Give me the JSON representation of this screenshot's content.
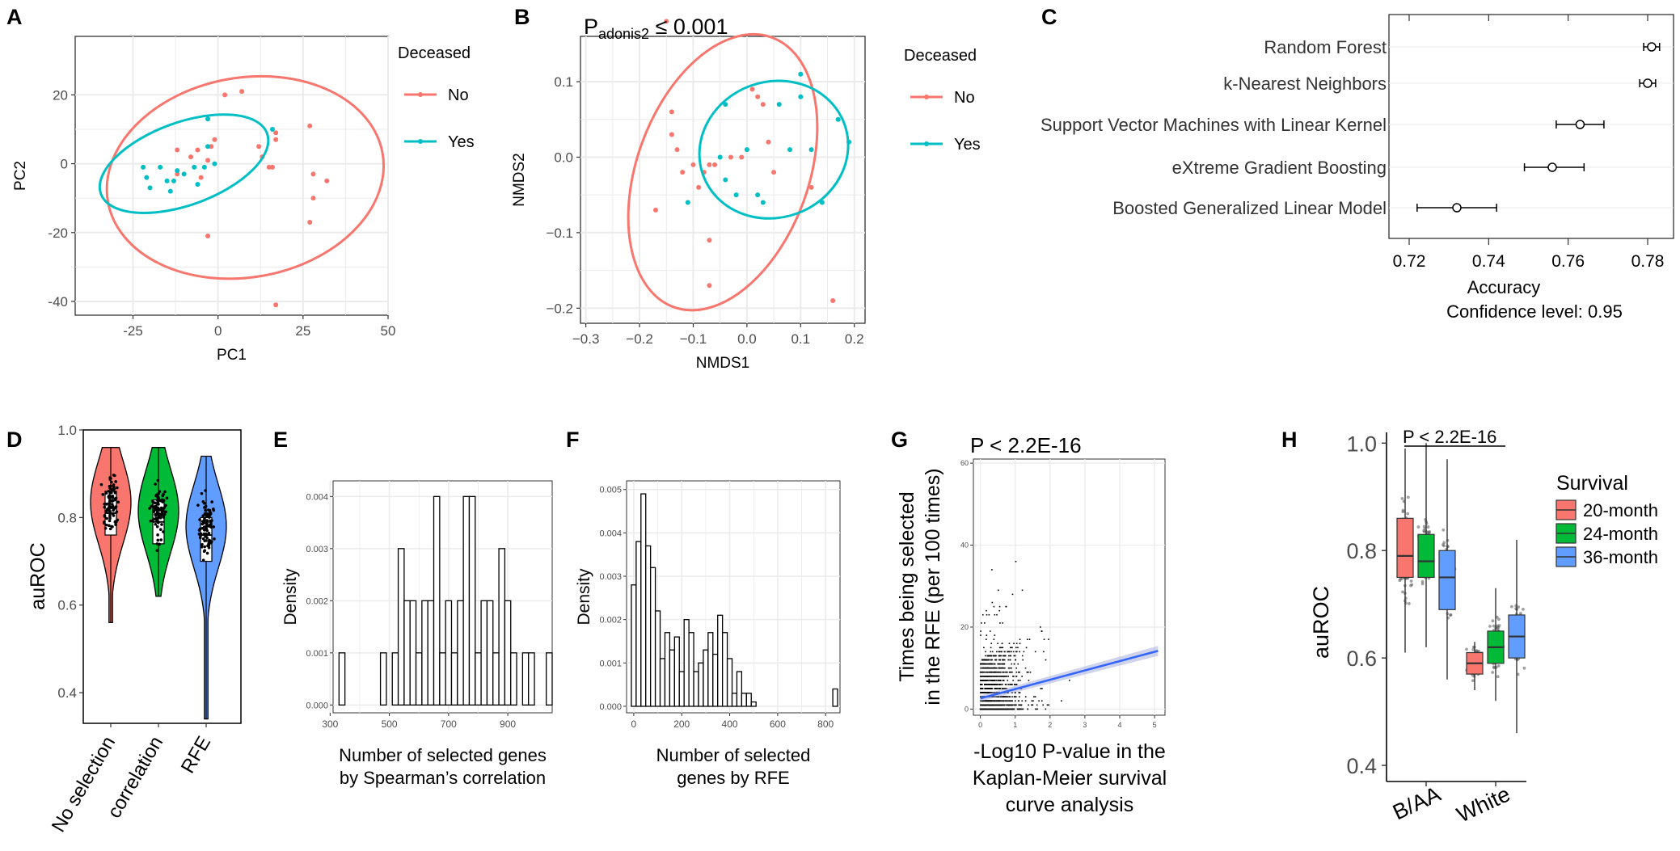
{
  "colors": {
    "no": "#F8766D",
    "yes": "#00BFC4",
    "red": "#F8766D",
    "green": "#00BA38",
    "blue": "#619CFF",
    "grid": "#EBEBEB",
    "bar": "#ffffff",
    "trend": "#3366FF"
  },
  "panel_labels": {
    "A": "A",
    "B": "B",
    "C": "C",
    "D": "D",
    "E": "E",
    "F": "F",
    "G": "G",
    "H": "H"
  },
  "chart_data": [
    {
      "id": "A",
      "type": "scatter",
      "xlabel": "PC1",
      "ylabel": "PC2",
      "xlim": [
        -42,
        50
      ],
      "ylim": [
        -44,
        37
      ],
      "xticks": [
        -25,
        0,
        25,
        50
      ],
      "yticks": [
        -40,
        -20,
        0,
        20
      ],
      "legend": {
        "title": "Deceased",
        "entries": [
          "No",
          "Yes"
        ]
      },
      "series": [
        {
          "name": "No",
          "points": [
            [
              -12,
              4
            ],
            [
              -8,
              2
            ],
            [
              -6,
              4
            ],
            [
              -2,
              5
            ],
            [
              -1,
              7
            ],
            [
              -3,
              1
            ],
            [
              2,
              20
            ],
            [
              7,
              21
            ],
            [
              -5,
              -4
            ],
            [
              -3,
              -21
            ],
            [
              12,
              5
            ],
            [
              13,
              2
            ],
            [
              15,
              -1
            ],
            [
              17,
              9
            ],
            [
              17,
              7
            ],
            [
              16,
              -1
            ],
            [
              27,
              11
            ],
            [
              28,
              -3
            ],
            [
              32,
              -5
            ],
            [
              28,
              -10
            ],
            [
              27,
              -17
            ],
            [
              17,
              -41
            ],
            [
              -12,
              -3
            ]
          ],
          "ellipse": {
            "cx": 8,
            "cy": -4,
            "rx": 41,
            "ry": 29,
            "angle": 10
          }
        },
        {
          "name": "Yes",
          "points": [
            [
              -22,
              -1
            ],
            [
              -21,
              -4
            ],
            [
              -20,
              -7
            ],
            [
              -15,
              -5
            ],
            [
              -13,
              -5
            ],
            [
              -12,
              -2
            ],
            [
              -10,
              -3
            ],
            [
              -7,
              -1
            ],
            [
              -4,
              -1
            ],
            [
              -3,
              13
            ],
            [
              -1,
              0
            ],
            [
              -3,
              5
            ],
            [
              -6,
              -6
            ],
            [
              -14,
              -8
            ],
            [
              16,
              10
            ],
            [
              -17,
              -1
            ]
          ],
          "ellipse": {
            "cx": -10,
            "cy": 0,
            "rx": 26,
            "ry": 12,
            "angle": 20
          }
        }
      ]
    },
    {
      "id": "B",
      "type": "scatter",
      "title": "P",
      "title_sub": "adonis2",
      "title_rest": " ≤ 0.001",
      "xlabel": "NMDS1",
      "ylabel": "NMDS2",
      "xlim": [
        -0.31,
        0.22
      ],
      "ylim": [
        -0.22,
        0.16
      ],
      "xticks": [
        -0.3,
        -0.2,
        -0.1,
        0.0,
        0.1,
        0.2
      ],
      "xticklabels": [
        "−0.3",
        "−0.2",
        "−0.1",
        "0.0",
        "0.1",
        "0.2"
      ],
      "yticks": [
        -0.2,
        -0.1,
        0.0,
        0.1
      ],
      "yticklabels": [
        "−0.2",
        "−0.1",
        "0.0",
        "0.1"
      ],
      "legend": {
        "title": "Deceased",
        "entries": [
          "No",
          "Yes"
        ]
      },
      "series": [
        {
          "name": "No",
          "points": [
            [
              -0.15,
              0.18
            ],
            [
              -0.14,
              0.06
            ],
            [
              -0.13,
              0.01
            ],
            [
              -0.14,
              0.03
            ],
            [
              -0.12,
              -0.02
            ],
            [
              -0.1,
              -0.01
            ],
            [
              -0.09,
              -0.04
            ],
            [
              -0.08,
              -0.02
            ],
            [
              -0.07,
              -0.01
            ],
            [
              -0.06,
              -0.01
            ],
            [
              -0.03,
              0.0
            ],
            [
              -0.01,
              0.0
            ],
            [
              0.01,
              0.09
            ],
            [
              0.02,
              0.08
            ],
            [
              0.03,
              0.07
            ],
            [
              0.04,
              0.02
            ],
            [
              0.05,
              -0.02
            ],
            [
              0.12,
              -0.04
            ],
            [
              -0.07,
              -0.11
            ],
            [
              -0.07,
              -0.17
            ],
            [
              -0.17,
              -0.07
            ],
            [
              0.16,
              -0.19
            ]
          ],
          "ellipse": {
            "cx": -0.045,
            "cy": -0.02,
            "rx": 0.16,
            "ry": 0.19,
            "angle": -20
          }
        },
        {
          "name": "Yes",
          "points": [
            [
              -0.04,
              0.07
            ],
            [
              -0.05,
              0.0
            ],
            [
              -0.04,
              -0.03
            ],
            [
              -0.02,
              -0.05
            ],
            [
              0.0,
              0.01
            ],
            [
              0.02,
              -0.05
            ],
            [
              0.03,
              -0.06
            ],
            [
              0.06,
              0.07
            ],
            [
              0.08,
              0.01
            ],
            [
              0.1,
              0.08
            ],
            [
              0.1,
              0.11
            ],
            [
              0.12,
              0.01
            ],
            [
              0.14,
              -0.06
            ],
            [
              0.17,
              0.05
            ],
            [
              0.19,
              0.02
            ],
            [
              -0.11,
              -0.06
            ]
          ],
          "ellipse": {
            "cx": 0.05,
            "cy": 0.01,
            "rx": 0.14,
            "ry": 0.09,
            "angle": 20
          }
        }
      ]
    },
    {
      "id": "C",
      "type": "forest",
      "xlabel": "Accuracy",
      "subtitle": "Confidence level: 0.95",
      "xlim": [
        0.715,
        0.785
      ],
      "xticks": [
        0.72,
        0.74,
        0.76,
        0.78
      ],
      "xticklabels": [
        "0.72",
        "0.74",
        "0.76",
        "0.78"
      ],
      "models": [
        {
          "name": "Random Forest",
          "est": 0.781,
          "lo": 0.779,
          "hi": 0.783
        },
        {
          "name": "k-Nearest Neighbors",
          "est": 0.78,
          "lo": 0.778,
          "hi": 0.782
        },
        {
          "name": "Support Vector Machines with Linear Kernel",
          "est": 0.763,
          "lo": 0.757,
          "hi": 0.769
        },
        {
          "name": "eXtreme Gradient Boosting",
          "est": 0.756,
          "lo": 0.749,
          "hi": 0.764
        },
        {
          "name": "Boosted Generalized Linear Model",
          "est": 0.732,
          "lo": 0.722,
          "hi": 0.742
        }
      ]
    },
    {
      "id": "D",
      "type": "violin",
      "ylabel": "auROC",
      "ylim": [
        0.33,
        1.0
      ],
      "yticks": [
        0.4,
        0.6,
        0.8,
        1.0
      ],
      "yticklabels": [
        "0.4",
        "0.6",
        "0.8",
        "1.0"
      ],
      "groups": [
        {
          "name": "No selection",
          "min": 0.56,
          "q1": 0.76,
          "median": 0.81,
          "q3": 0.86,
          "max": 0.96,
          "color_key": "red"
        },
        {
          "name": "correlation",
          "min": 0.62,
          "q1": 0.74,
          "median": 0.79,
          "q3": 0.84,
          "max": 0.96,
          "color_key": "green"
        },
        {
          "name": "RFE",
          "min": 0.34,
          "q1": 0.7,
          "median": 0.76,
          "q3": 0.8,
          "max": 0.94,
          "color_key": "blue"
        }
      ]
    },
    {
      "id": "E",
      "type": "histogram",
      "xlabel": "Number of selected genes",
      "xlabel2": "by Spearman’s correlation",
      "ylabel": "Density",
      "xlim": [
        310,
        1050
      ],
      "ylim": [
        -0.00015,
        0.0043
      ],
      "xticks": [
        300,
        500,
        700,
        900
      ],
      "yticks": [
        0,
        0.001,
        0.002,
        0.003,
        0.004
      ],
      "yticklabels": [
        "0.000",
        "0.001",
        "0.002",
        "0.003",
        "0.004"
      ],
      "bin_start": 330,
      "bin_width": 20,
      "values": [
        0.001,
        0,
        0,
        0,
        0,
        0,
        0,
        0.001,
        0,
        0.001,
        0.003,
        0.002,
        0.002,
        0.001,
        0.002,
        0.002,
        0.004,
        0.001,
        0.002,
        0.001,
        0.002,
        0.004,
        0.004,
        0.001,
        0.002,
        0.002,
        0.001,
        0.003,
        0.002,
        0.001,
        0,
        0.001,
        0.001,
        0,
        0,
        0.001
      ]
    },
    {
      "id": "F",
      "type": "histogram",
      "xlabel": "Number of selected",
      "xlabel2": "genes by RFE",
      "ylabel": "Density",
      "xlim": [
        -30,
        860
      ],
      "ylim": [
        -0.00015,
        0.0052
      ],
      "xticks": [
        0,
        200,
        400,
        600,
        800
      ],
      "yticks": [
        0,
        0.001,
        0.002,
        0.003,
        0.004,
        0.005
      ],
      "yticklabels": [
        "0.000",
        "0.001",
        "0.002",
        "0.003",
        "0.004",
        "0.005"
      ],
      "bin_start": -10,
      "bin_width": 20,
      "values": [
        0.0028,
        0.0038,
        0.0049,
        0.0037,
        0.0032,
        0.0022,
        0.0011,
        0.0017,
        0.0013,
        0.0016,
        0.0008,
        0.002,
        0.0017,
        0.0008,
        0.001,
        0.0013,
        0.0017,
        0.0012,
        0.0021,
        0.0017,
        0.0011,
        0.0003,
        0.0008,
        0.0003,
        0.0003,
        0.0001,
        0,
        0,
        0,
        0,
        0,
        0,
        0,
        0,
        0,
        0,
        0,
        0,
        0,
        0,
        0,
        0,
        0.0004
      ]
    },
    {
      "id": "G",
      "type": "scatter",
      "title": "P < 2.2E-16",
      "xlabel": "-Log10 P-value in the",
      "xlabel2": "Kaplan-Meier survival",
      "xlabel3": "curve analysis",
      "ylabel": "Times being selected",
      "ylabel2": "in the RFE (per 100 times)",
      "xlim": [
        -0.2,
        5.3
      ],
      "ylim": [
        -1.5,
        61
      ],
      "xticks": [
        0,
        1,
        2,
        3,
        4,
        5
      ],
      "yticks": [
        0,
        20,
        40,
        60
      ],
      "trend": {
        "x0": 0,
        "y0": 2.6,
        "x1": 5.1,
        "y1": 14.2
      }
    },
    {
      "id": "H",
      "type": "box",
      "title": "P < 2.2E-16",
      "ylabel": "auROC",
      "ylim": [
        0.37,
        1.02
      ],
      "yticks": [
        0.4,
        0.6,
        0.8,
        1.0
      ],
      "yticklabels": [
        "0.4",
        "0.6",
        "0.8",
        "1.0"
      ],
      "categories": [
        "B/AA",
        "White"
      ],
      "legend": {
        "title": "Survival",
        "entries": [
          "20-month",
          "24-month",
          "36-month"
        ]
      },
      "series": [
        {
          "name": "20-month",
          "color_key": "red",
          "boxes": [
            {
              "min": 0.61,
              "q1": 0.75,
              "median": 0.79,
              "q3": 0.86,
              "max": 0.99
            },
            {
              "min": 0.54,
              "q1": 0.57,
              "median": 0.59,
              "q3": 0.61,
              "max": 0.63
            }
          ]
        },
        {
          "name": "24-month",
          "color_key": "green",
          "boxes": [
            {
              "min": 0.62,
              "q1": 0.75,
              "median": 0.78,
              "q3": 0.83,
              "max": 1.0
            },
            {
              "min": 0.52,
              "q1": 0.59,
              "median": 0.62,
              "q3": 0.65,
              "max": 0.73
            }
          ]
        },
        {
          "name": "36-month",
          "color_key": "blue",
          "boxes": [
            {
              "min": 0.56,
              "q1": 0.69,
              "median": 0.75,
              "q3": 0.8,
              "max": 0.97
            },
            {
              "min": 0.46,
              "q1": 0.6,
              "median": 0.64,
              "q3": 0.68,
              "max": 0.82
            }
          ]
        }
      ]
    }
  ]
}
